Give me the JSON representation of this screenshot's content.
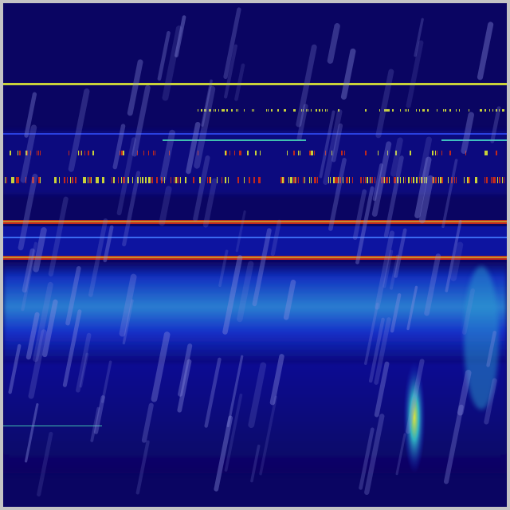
{
  "colors": {
    "background": "#0a0562",
    "frame": "#c4c4c4",
    "band_blue": "#1a3fd8",
    "band_cyan": "#2fa6c8",
    "line_yellow": "#c8d23a",
    "line_red": "#c0281e",
    "rain": "#8a8ee0"
  },
  "icons": []
}
